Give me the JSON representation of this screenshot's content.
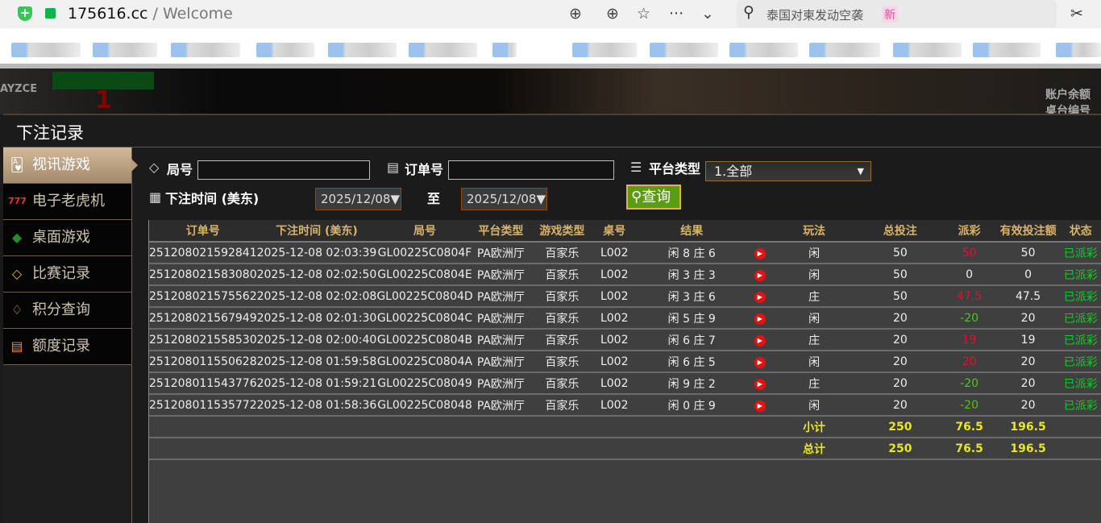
{
  "browser": {
    "url_host": "175616.cc",
    "url_path": " / Welcome",
    "search_text": "泰国对柬发动空袭",
    "search_badge": "新"
  },
  "background": {
    "logo": "AYZCE",
    "number": "1",
    "right_line1": "账户余额",
    "right_line2": "桌台编号"
  },
  "panel": {
    "title": "下注记录"
  },
  "sidebar": {
    "items": [
      {
        "label": "视讯游戏",
        "icon": "cards-icon",
        "active": true
      },
      {
        "label": "电子老虎机",
        "icon": "slot-777-icon"
      },
      {
        "label": "桌面游戏",
        "icon": "chips-icon"
      },
      {
        "label": "比赛记录",
        "icon": "ticket-icon"
      },
      {
        "label": "积分查询",
        "icon": "diamond-icon"
      },
      {
        "label": "额度记录",
        "icon": "document-icon"
      }
    ]
  },
  "filters": {
    "round_label": "局号",
    "round_value": "",
    "order_label": "订单号",
    "order_value": "",
    "platform_label": "平台类型",
    "platform_value": "1.全部",
    "time_label": "下注时间 (美东)",
    "date_from": "2025/12/08",
    "to_label": "至",
    "date_to": "2025/12/08",
    "query_button": "查询"
  },
  "table": {
    "headers": [
      "订单号",
      "下注时间 (美东)",
      "局号",
      "平台类型",
      "游戏类型",
      "桌号",
      "结果",
      "",
      "玩法",
      "总投注",
      "派彩",
      "有效投注额",
      "状态"
    ],
    "rows": [
      [
        "251208021592841",
        "2025-12-08 02:03:39",
        "GL00225C0804F",
        "PA欧洲厅",
        "百家乐",
        "L002",
        "闲 8 庄 6",
        "闲",
        "50",
        "50",
        "50",
        "已派彩",
        "red"
      ],
      [
        "251208021583080",
        "2025-12-08 02:02:50",
        "GL00225C0804E",
        "PA欧洲厅",
        "百家乐",
        "L002",
        "闲 3 庄 3",
        "闲",
        "50",
        "0",
        "0",
        "已派彩",
        ""
      ],
      [
        "251208021575562",
        "2025-12-08 02:02:08",
        "GL00225C0804D",
        "PA欧洲厅",
        "百家乐",
        "L002",
        "闲 3 庄 6",
        "庄",
        "50",
        "47.5",
        "47.5",
        "已派彩",
        "red"
      ],
      [
        "251208021567949",
        "2025-12-08 02:01:30",
        "GL00225C0804C",
        "PA欧洲厅",
        "百家乐",
        "L002",
        "闲 5 庄 9",
        "闲",
        "20",
        "-20",
        "20",
        "已派彩",
        "grn"
      ],
      [
        "251208021558530",
        "2025-12-08 02:00:40",
        "GL00225C0804B",
        "PA欧洲厅",
        "百家乐",
        "L002",
        "闲 6 庄 7",
        "庄",
        "20",
        "19",
        "19",
        "已派彩",
        "red"
      ],
      [
        "251208011550628",
        "2025-12-08 01:59:58",
        "GL00225C0804A",
        "PA欧洲厅",
        "百家乐",
        "L002",
        "闲 6 庄 5",
        "闲",
        "20",
        "20",
        "20",
        "已派彩",
        "red"
      ],
      [
        "251208011543776",
        "2025-12-08 01:59:21",
        "GL00225C08049",
        "PA欧洲厅",
        "百家乐",
        "L002",
        "闲 9 庄 2",
        "庄",
        "20",
        "-20",
        "20",
        "已派彩",
        "grn"
      ],
      [
        "251208011535772",
        "2025-12-08 01:58:36",
        "GL00225C08048",
        "PA欧洲厅",
        "百家乐",
        "L002",
        "闲 0 庄 9",
        "闲",
        "20",
        "-20",
        "20",
        "已派彩",
        "grn"
      ]
    ],
    "subtotal": {
      "label": "小计",
      "total_bet": "250",
      "payout": "76.5",
      "valid_bet": "196.5"
    },
    "total": {
      "label": "总计",
      "total_bet": "250",
      "payout": "76.5",
      "valid_bet": "196.5"
    }
  },
  "colors": {
    "win": "#e01030",
    "loss": "#44cc11",
    "status": "#11cc22",
    "totals": "#e8e820",
    "header": "#d8b36a"
  }
}
